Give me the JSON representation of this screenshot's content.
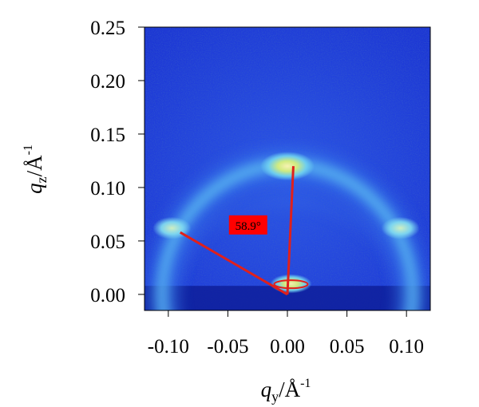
{
  "chart_data": {
    "type": "heatmap",
    "description_text": "",
    "x_axis": {
      "label_main": "q",
      "label_sub": "y",
      "label_unit": "/Å",
      "label_exp": "-1",
      "range": [
        -0.12,
        0.12
      ],
      "ticks": [
        -0.1,
        -0.05,
        0.0,
        0.05,
        0.1
      ],
      "tick_labels": [
        "-0.10",
        "-0.05",
        "0.00",
        "0.05",
        "0.10"
      ]
    },
    "y_axis": {
      "label_main": "q",
      "label_sub": "z",
      "label_unit": "/Å",
      "label_exp": "-1",
      "range": [
        -0.015,
        0.25
      ],
      "ticks": [
        0.0,
        0.05,
        0.1,
        0.15,
        0.2,
        0.25
      ],
      "tick_labels": [
        "0.00",
        "0.05",
        "0.10",
        "0.15",
        "0.20",
        "0.25"
      ]
    },
    "features": {
      "ring": {
        "center": [
          0.0,
          0.0
        ],
        "radius_y": 0.121,
        "radius_x": 0.105
      },
      "bright_spots": [
        {
          "q": [
            0.0,
            0.12
          ]
        },
        {
          "q": [
            -0.097,
            0.062
          ]
        },
        {
          "q": [
            0.095,
            0.062
          ]
        },
        {
          "q": [
            0.003,
            0.01
          ]
        }
      ]
    },
    "annotation": {
      "angle_label": "58.9°",
      "label_anchor": [
        -0.033,
        0.065
      ],
      "origin": [
        0.0,
        0.0
      ],
      "line_end_1": [
        0.005,
        0.12
      ],
      "line_end_2": [
        -0.09,
        0.058
      ],
      "line_color": "#e0201c",
      "label_bg": "#ff0000"
    },
    "colors": {
      "background": "#1f3fdc",
      "ring_inner": "#5ab8f0",
      "ring_outer": "#2a66e8",
      "hot": "#fff2a0",
      "dark_band": "#0e1e9a"
    },
    "grid": false
  }
}
